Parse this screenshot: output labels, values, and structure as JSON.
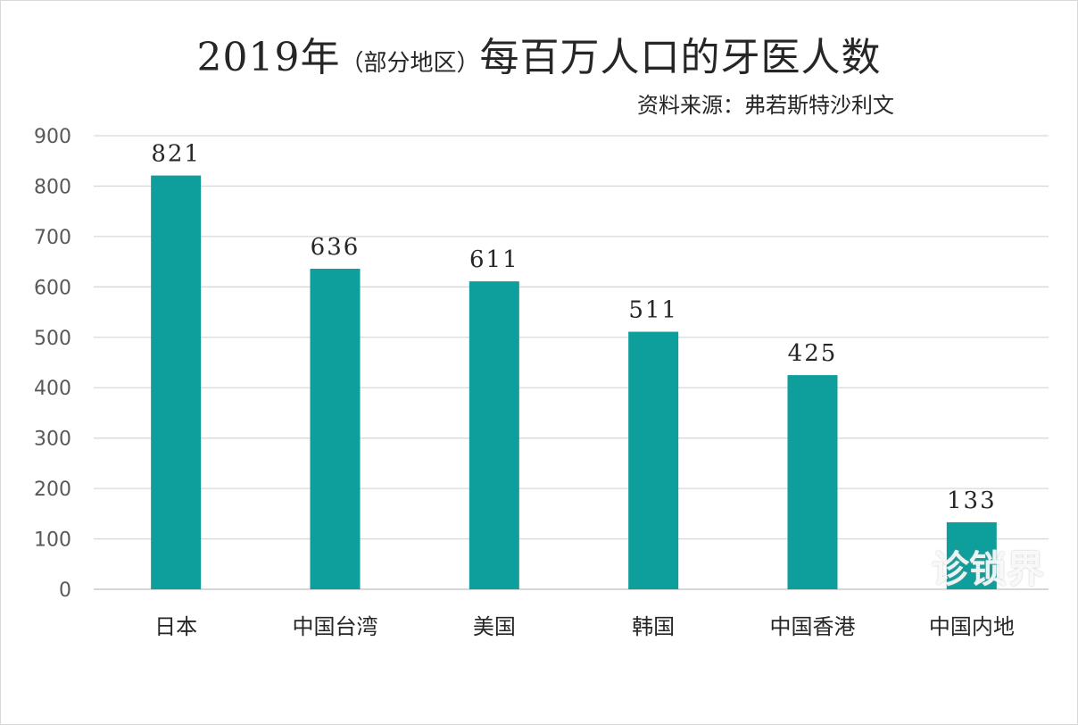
{
  "chart_data": {
    "type": "bar",
    "title_main_year": "2019年",
    "title_paren": "（部分地区）",
    "title_rest": "每百万人口的牙医人数",
    "subtitle": "资料来源：弗若斯特沙利文",
    "categories": [
      "日本",
      "中国台湾",
      "美国",
      "韩国",
      "中国香港",
      "中国内地"
    ],
    "values": [
      821,
      636,
      611,
      511,
      425,
      133
    ],
    "yticks": [
      "0",
      "100",
      "200",
      "300",
      "400",
      "500",
      "600",
      "700",
      "800",
      "900"
    ],
    "ylim": [
      0,
      900
    ],
    "grid": true,
    "xlabel": "",
    "ylabel": "",
    "bar_color": "#0e9e9b"
  },
  "watermark": "诊锁界"
}
